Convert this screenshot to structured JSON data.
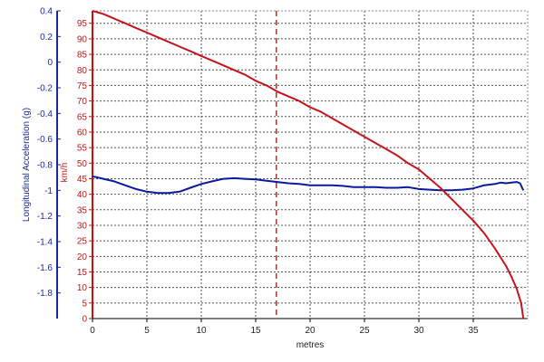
{
  "chart_data": {
    "type": "line",
    "xlabel": "metres",
    "x_ticks": [
      0,
      5,
      10,
      15,
      20,
      25,
      30,
      35
    ],
    "xlim": [
      0,
      40
    ],
    "y_left_label": "Longitudinal Acceleration (g)",
    "y_left_ticks": [
      0.4,
      0.2,
      0,
      -0.2,
      -0.4,
      -0.6,
      -0.8,
      -1,
      -1.2,
      -1.4,
      -1.6,
      -1.8
    ],
    "y_left_range": [
      -2.0,
      0.4
    ],
    "y_right_label": "km/h",
    "y_right_ticks": [
      95,
      90,
      85,
      80,
      75,
      70,
      65,
      60,
      55,
      50,
      45,
      40,
      35,
      30,
      25,
      20,
      15,
      10,
      5,
      0
    ],
    "y_right_range": [
      0,
      99
    ],
    "marker_x": 16.9,
    "grid": true,
    "colors": {
      "acceleration": "#0a1aa0",
      "speed": "#c4141c",
      "left_axis": "#1a2a9a",
      "right_axis": "#cc1010",
      "grid": "#555555",
      "marker": "#8b1a1a"
    },
    "series": [
      {
        "axis": "left",
        "color": "#0a1aa0",
        "points": [
          [
            0,
            -0.89
          ],
          [
            1,
            -0.91
          ],
          [
            2,
            -0.93
          ],
          [
            3,
            -0.96
          ],
          [
            4,
            -0.99
          ],
          [
            5,
            -1.01
          ],
          [
            6,
            -1.02
          ],
          [
            7,
            -1.02
          ],
          [
            8,
            -1.01
          ],
          [
            9,
            -0.98
          ],
          [
            10,
            -0.95
          ],
          [
            11,
            -0.93
          ],
          [
            12,
            -0.91
          ],
          [
            13,
            -0.905
          ],
          [
            14,
            -0.91
          ],
          [
            15,
            -0.915
          ],
          [
            16,
            -0.925
          ],
          [
            17,
            -0.935
          ],
          [
            18,
            -0.945
          ],
          [
            19,
            -0.95
          ],
          [
            20,
            -0.96
          ],
          [
            21,
            -0.96
          ],
          [
            22,
            -0.96
          ],
          [
            23,
            -0.965
          ],
          [
            24,
            -0.975
          ],
          [
            25,
            -0.975
          ],
          [
            26,
            -0.975
          ],
          [
            27,
            -0.98
          ],
          [
            28,
            -0.98
          ],
          [
            29,
            -0.975
          ],
          [
            30,
            -0.99
          ],
          [
            31,
            -0.995
          ],
          [
            32,
            -1.0
          ],
          [
            33,
            -1.0
          ],
          [
            34,
            -0.995
          ],
          [
            35,
            -0.985
          ],
          [
            36,
            -0.96
          ],
          [
            37,
            -0.95
          ],
          [
            37.5,
            -0.94
          ],
          [
            38,
            -0.945
          ],
          [
            38.5,
            -0.94
          ],
          [
            39,
            -0.935
          ],
          [
            39.3,
            -0.945
          ],
          [
            39.6,
            -1.0
          ]
        ]
      },
      {
        "axis": "right",
        "color": "#c4141c",
        "points": [
          [
            0,
            99
          ],
          [
            1,
            98
          ],
          [
            2,
            96.5
          ],
          [
            3,
            95
          ],
          [
            4,
            93.5
          ],
          [
            5,
            92
          ],
          [
            6,
            90.5
          ],
          [
            7,
            89
          ],
          [
            8,
            87.5
          ],
          [
            9,
            86
          ],
          [
            10,
            84.5
          ],
          [
            11,
            83
          ],
          [
            12,
            81.5
          ],
          [
            13,
            80
          ],
          [
            14,
            78.5
          ],
          [
            15,
            76.5
          ],
          [
            16,
            75
          ],
          [
            17,
            73
          ],
          [
            18,
            71.5
          ],
          [
            19,
            70
          ],
          [
            20,
            68
          ],
          [
            21,
            66.5
          ],
          [
            22,
            64.5
          ],
          [
            23,
            62.5
          ],
          [
            24,
            60.5
          ],
          [
            25,
            58.5
          ],
          [
            26,
            56.5
          ],
          [
            27,
            54.5
          ],
          [
            28,
            52.5
          ],
          [
            29,
            50
          ],
          [
            30,
            48
          ],
          [
            31,
            45
          ],
          [
            32,
            42
          ],
          [
            33,
            38.5
          ],
          [
            34,
            35
          ],
          [
            35,
            31.5
          ],
          [
            36,
            27.5
          ],
          [
            37,
            22.5
          ],
          [
            38,
            17
          ],
          [
            38.5,
            13.5
          ],
          [
            39,
            9.5
          ],
          [
            39.4,
            5
          ],
          [
            39.6,
            0
          ]
        ]
      }
    ]
  }
}
